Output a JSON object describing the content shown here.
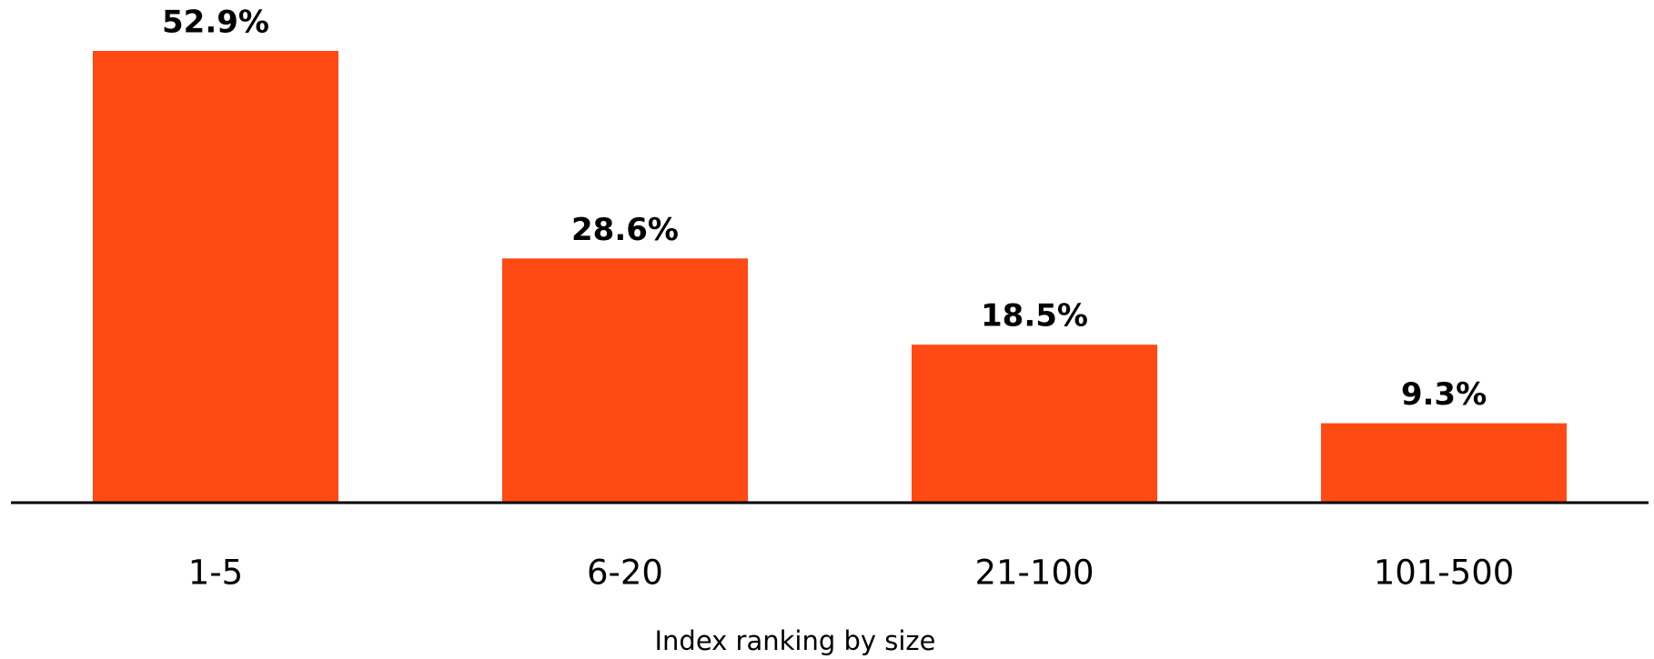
{
  "chart_data": {
    "type": "bar",
    "categories": [
      "1-5",
      "6-20",
      "21-100",
      "101-500"
    ],
    "values": [
      52.9,
      28.6,
      18.5,
      9.3
    ],
    "value_labels": [
      "52.9%",
      "28.6%",
      "18.5%",
      "9.3%"
    ],
    "color": "#ff4a14",
    "x_label": "Index ranking by size"
  }
}
